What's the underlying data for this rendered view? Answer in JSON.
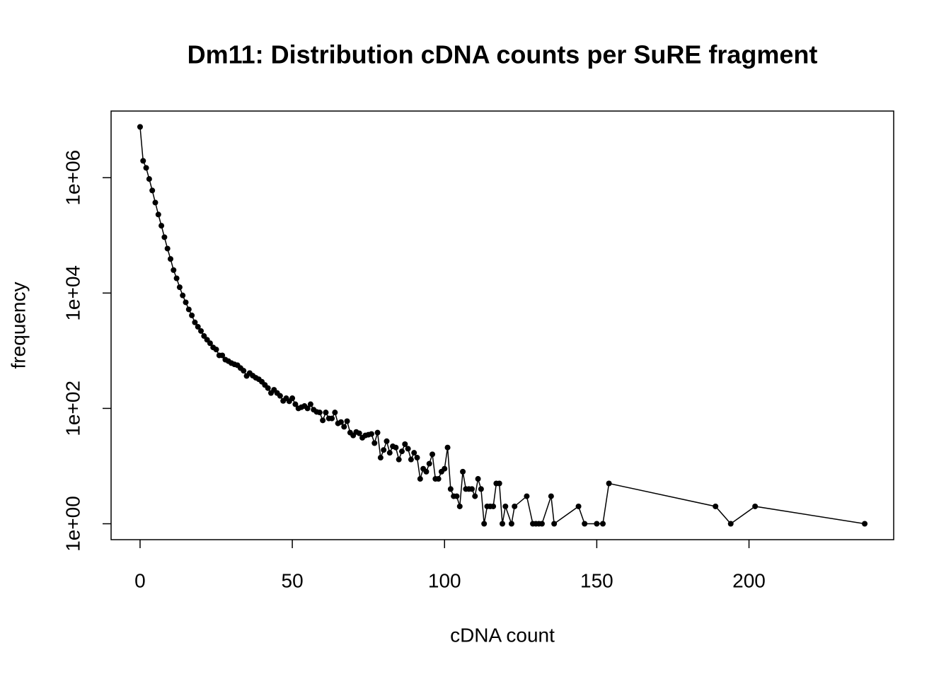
{
  "chart_data": {
    "type": "line",
    "title": "Dm11: Distribution cDNA counts per SuRE fragment",
    "xlabel": "cDNA count",
    "ylabel": "frequency",
    "log_y": true,
    "color": "#000000",
    "markers": true,
    "x": [
      0,
      1,
      2,
      3,
      4,
      5,
      6,
      7,
      8,
      9,
      10,
      11,
      12,
      13,
      14,
      15,
      16,
      17,
      18,
      19,
      20,
      21,
      22,
      23,
      24,
      25,
      26,
      27,
      28,
      29,
      30,
      31,
      32,
      33,
      34,
      35,
      36,
      37,
      38,
      39,
      40,
      41,
      42,
      43,
      44,
      45,
      46,
      47,
      48,
      49,
      50,
      51,
      52,
      53,
      54,
      55,
      56,
      57,
      58,
      59,
      60,
      61,
      62,
      63,
      64,
      65,
      66,
      67,
      68,
      69,
      70,
      71,
      72,
      73,
      74,
      75,
      76,
      77,
      78,
      79,
      80,
      81,
      82,
      83,
      84,
      85,
      86,
      87,
      88,
      89,
      90,
      91,
      92,
      93,
      94,
      95,
      96,
      97,
      98,
      99,
      100,
      101,
      102,
      103,
      104,
      105,
      106,
      107,
      108,
      109,
      110,
      111,
      112,
      113,
      114,
      115,
      116,
      117,
      118,
      119,
      120,
      122,
      123,
      127,
      129,
      130,
      131,
      132,
      135,
      136,
      144,
      146,
      150,
      152,
      154,
      189,
      194,
      202,
      238
    ],
    "values": [
      7600000,
      1960000,
      1480000,
      950000,
      600000,
      370000,
      230000,
      147000,
      93000,
      59000,
      39000,
      25000,
      18000,
      12600,
      9100,
      6900,
      5200,
      4100,
      3100,
      2600,
      2200,
      1800,
      1550,
      1350,
      1140,
      1050,
      830,
      830,
      700,
      660,
      610,
      580,
      560,
      500,
      450,
      365,
      410,
      370,
      340,
      320,
      290,
      255,
      225,
      185,
      210,
      185,
      165,
      135,
      150,
      133,
      150,
      118,
      100,
      105,
      110,
      100,
      118,
      95,
      87,
      85,
      62,
      85,
      67,
      67,
      85,
      55,
      58,
      48,
      60,
      38,
      34,
      39,
      37,
      31,
      34,
      35,
      36,
      25,
      38,
      14,
      19,
      27,
      17,
      22,
      21,
      13,
      18,
      24,
      20,
      13,
      17,
      14,
      6,
      9,
      8,
      11,
      16,
      6,
      6,
      8,
      9,
      21,
      4,
      3,
      3,
      2,
      8,
      4,
      4,
      4,
      3,
      6,
      4,
      1,
      2,
      2,
      2,
      5,
      5,
      1,
      2,
      1,
      2,
      3,
      1,
      1,
      1,
      1,
      3,
      1,
      2,
      1,
      1,
      1,
      5,
      2,
      1,
      2,
      1
    ],
    "xlim": [
      -9.52,
      247.52
    ],
    "xticks": [
      0,
      50,
      100,
      150,
      200
    ],
    "ylim": [
      0.53,
      14300000
    ],
    "yticks": [
      {
        "value": 1,
        "label": "1e+00"
      },
      {
        "value": 100,
        "label": "1e+02"
      },
      {
        "value": 10000,
        "label": "1e+04"
      },
      {
        "value": 1000000,
        "label": "1e+06"
      }
    ]
  }
}
